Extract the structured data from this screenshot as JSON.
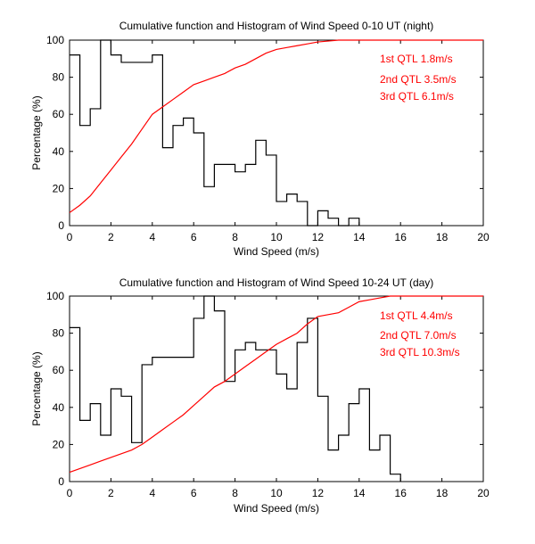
{
  "chart_data": [
    {
      "type": "line",
      "title": "Cumulative function and Histogram of Wind Speed 0-10 UT (night)",
      "xlabel": "Wind Speed (m/s)",
      "ylabel": "Percentage (%)",
      "xlim": [
        0,
        20
      ],
      "ylim": [
        0,
        100
      ],
      "xticks": [
        0,
        2,
        4,
        6,
        8,
        10,
        12,
        14,
        16,
        18,
        20
      ],
      "yticks": [
        0,
        20,
        40,
        60,
        80,
        100
      ],
      "grid": false,
      "colors": {
        "histogram": "#000000",
        "cumulative": "#ff0000",
        "annotation": "#ff0000"
      },
      "annotations": [
        "1st QTL 1.8m/s",
        "2nd QTL 3.5m/s",
        "3rd QTL 6.1m/s"
      ],
      "series": [
        {
          "name": "histogram",
          "style": "stairs",
          "x": [
            0,
            0.5,
            1,
            1.5,
            2,
            2.5,
            3,
            3.5,
            4,
            4.5,
            5,
            5.5,
            6,
            6.5,
            7,
            7.5,
            8,
            8.5,
            9,
            9.5,
            10,
            10.5,
            11,
            11.5,
            12,
            12.5,
            13,
            13.5,
            14
          ],
          "values": [
            92,
            54,
            63,
            100,
            92,
            88,
            88,
            88,
            92,
            42,
            54,
            58,
            50,
            21,
            33,
            33,
            29,
            33,
            46,
            38,
            13,
            17,
            13,
            0,
            8,
            4,
            0,
            4,
            0
          ]
        },
        {
          "name": "cumulative",
          "style": "line",
          "x": [
            0,
            0.5,
            1,
            1.5,
            2,
            2.5,
            3,
            3.5,
            4,
            4.5,
            5,
            5.5,
            6,
            6.5,
            7,
            7.5,
            8,
            8.5,
            9,
            9.5,
            10,
            10.5,
            11,
            11.5,
            12,
            12.5,
            13,
            13.5,
            14,
            20
          ],
          "values": [
            7,
            11,
            16,
            23,
            30,
            37,
            44,
            52,
            60,
            64,
            68,
            72,
            76,
            78,
            80,
            82,
            85,
            87,
            90,
            93,
            95,
            96,
            97,
            98,
            99,
            99.5,
            100,
            100,
            100,
            100
          ]
        }
      ]
    },
    {
      "type": "line",
      "title": "Cumulative function and Histogram of Wind Speed 10-24 UT (day)",
      "xlabel": "Wind Speed (m/s)",
      "ylabel": "Percentage (%)",
      "xlim": [
        0,
        20
      ],
      "ylim": [
        0,
        100
      ],
      "xticks": [
        0,
        2,
        4,
        6,
        8,
        10,
        12,
        14,
        16,
        18,
        20
      ],
      "yticks": [
        0,
        20,
        40,
        60,
        80,
        100
      ],
      "grid": false,
      "colors": {
        "histogram": "#000000",
        "cumulative": "#ff0000",
        "annotation": "#ff0000"
      },
      "annotations": [
        "1st QTL 4.4m/s",
        "2nd QTL 7.0m/s",
        "3rd QTL 10.3m/s"
      ],
      "series": [
        {
          "name": "histogram",
          "style": "stairs",
          "x": [
            0,
            0.5,
            1,
            1.5,
            2,
            2.5,
            3,
            3.5,
            4,
            4.5,
            5,
            5.5,
            6,
            6.5,
            7,
            7.5,
            8,
            8.5,
            9,
            9.5,
            10,
            10.5,
            11,
            11.5,
            12,
            12.5,
            13,
            13.5,
            14,
            14.5,
            15,
            15.5,
            16
          ],
          "values": [
            83,
            33,
            42,
            25,
            50,
            46,
            21,
            63,
            67,
            67,
            67,
            67,
            88,
            100,
            92,
            54,
            71,
            75,
            71,
            71,
            58,
            50,
            75,
            88,
            46,
            17,
            25,
            42,
            50,
            17,
            25,
            4,
            0
          ]
        },
        {
          "name": "cumulative",
          "style": "line",
          "x": [
            0,
            0.5,
            1,
            1.5,
            2,
            2.5,
            3,
            3.5,
            4,
            4.5,
            5,
            5.5,
            6,
            6.5,
            7,
            7.5,
            8,
            8.5,
            9,
            9.5,
            10,
            10.5,
            11,
            11.5,
            12,
            12.5,
            13,
            13.5,
            14,
            14.5,
            15,
            15.5,
            16,
            20
          ],
          "values": [
            5,
            7,
            9,
            11,
            13,
            15,
            17,
            20,
            24,
            28,
            32,
            36,
            41,
            46,
            51,
            54,
            58,
            62,
            66,
            70,
            74,
            77,
            80,
            85,
            89,
            90,
            91,
            94,
            97,
            98,
            99,
            100,
            100,
            100
          ]
        }
      ]
    }
  ]
}
